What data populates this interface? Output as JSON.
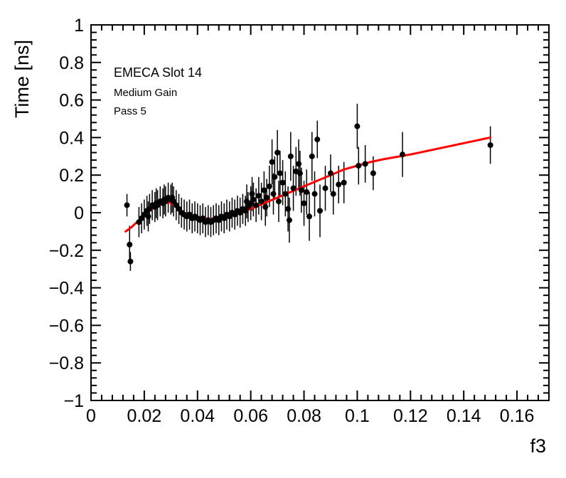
{
  "annotations": {
    "line1": "EMECA Slot 14",
    "line2": "Medium Gain",
    "line3": "Pass 5"
  },
  "chart_data": {
    "type": "scatter",
    "title": "",
    "xlabel": "f3",
    "ylabel": "Time [ns]",
    "xlim": [
      0,
      0.172
    ],
    "ylim": [
      -1,
      1
    ],
    "grid": false,
    "legend": "none",
    "marker_color": "#000000",
    "fit_color": "#ff0000",
    "x_major_ticks": [
      {
        "v": 0,
        "label": "0"
      },
      {
        "v": 0.02,
        "label": "0.02"
      },
      {
        "v": 0.04,
        "label": "0.04"
      },
      {
        "v": 0.06,
        "label": "0.06"
      },
      {
        "v": 0.08,
        "label": "0.08"
      },
      {
        "v": 0.1,
        "label": "0.1"
      },
      {
        "v": 0.12,
        "label": "0.12"
      },
      {
        "v": 0.14,
        "label": "0.14"
      },
      {
        "v": 0.16,
        "label": "0.16"
      }
    ],
    "y_major_ticks": [
      {
        "v": 1,
        "label": "1"
      },
      {
        "v": 0.8,
        "label": "0.8"
      },
      {
        "v": 0.6,
        "label": "0.6"
      },
      {
        "v": 0.4,
        "label": "0.4"
      },
      {
        "v": 0.2,
        "label": "0.2"
      },
      {
        "v": 0,
        "label": "0"
      },
      {
        "v": -0.2,
        "label": "−0.2"
      },
      {
        "v": -0.4,
        "label": "−0.4"
      },
      {
        "v": -0.6,
        "label": "−0.6"
      },
      {
        "v": -0.8,
        "label": "−0.8"
      },
      {
        "v": -1,
        "label": "−1"
      }
    ],
    "x_minor_step": 0.004,
    "y_minor_step": 0.04,
    "series": [
      {
        "name": "data",
        "type": "scatter_errorbar",
        "points": [
          [
            0.0135,
            0.04,
            0.06
          ],
          [
            0.0145,
            -0.17,
            0.1
          ],
          [
            0.0148,
            -0.26,
            0.05
          ],
          [
            0.018,
            -0.05,
            0.08
          ],
          [
            0.019,
            -0.03,
            0.08
          ],
          [
            0.02,
            -0.01,
            0.08
          ],
          [
            0.021,
            0.01,
            0.08
          ],
          [
            0.0215,
            -0.02,
            0.08
          ],
          [
            0.022,
            0.02,
            0.08
          ],
          [
            0.023,
            0.04,
            0.08
          ],
          [
            0.024,
            0.03,
            0.08
          ],
          [
            0.0245,
            0.05,
            0.08
          ],
          [
            0.025,
            0.04,
            0.08
          ],
          [
            0.026,
            0.06,
            0.08
          ],
          [
            0.027,
            0.05,
            0.08
          ],
          [
            0.0275,
            0.07,
            0.08
          ],
          [
            0.028,
            0.06,
            0.08
          ],
          [
            0.029,
            0.08,
            0.08
          ],
          [
            0.03,
            0.07,
            0.08
          ],
          [
            0.0305,
            0.08,
            0.08
          ],
          [
            0.031,
            0.06,
            0.08
          ],
          [
            0.032,
            0.04,
            0.08
          ],
          [
            0.033,
            0.02,
            0.08
          ],
          [
            0.034,
            0.0,
            0.08
          ],
          [
            0.035,
            -0.01,
            0.08
          ],
          [
            0.036,
            -0.02,
            0.08
          ],
          [
            0.037,
            -0.01,
            0.08
          ],
          [
            0.038,
            -0.03,
            0.08
          ],
          [
            0.039,
            -0.02,
            0.08
          ],
          [
            0.04,
            -0.03,
            0.08
          ],
          [
            0.041,
            -0.04,
            0.08
          ],
          [
            0.042,
            -0.03,
            0.08
          ],
          [
            0.043,
            -0.05,
            0.08
          ],
          [
            0.044,
            -0.04,
            0.08
          ],
          [
            0.045,
            -0.05,
            0.08
          ],
          [
            0.046,
            -0.04,
            0.08
          ],
          [
            0.047,
            -0.03,
            0.08
          ],
          [
            0.048,
            -0.04,
            0.08
          ],
          [
            0.049,
            -0.02,
            0.08
          ],
          [
            0.05,
            -0.03,
            0.08
          ],
          [
            0.051,
            -0.01,
            0.08
          ],
          [
            0.052,
            -0.02,
            0.08
          ],
          [
            0.053,
            0.0,
            0.08
          ],
          [
            0.054,
            -0.01,
            0.08
          ],
          [
            0.055,
            0.01,
            0.08
          ],
          [
            0.056,
            0.0,
            0.08
          ],
          [
            0.057,
            0.02,
            0.08
          ],
          [
            0.058,
            0.01,
            0.08
          ],
          [
            0.0585,
            0.06,
            0.09
          ],
          [
            0.059,
            0.03,
            0.08
          ],
          [
            0.06,
            0.05,
            0.09
          ],
          [
            0.0605,
            0.1,
            0.09
          ],
          [
            0.061,
            0.07,
            0.09
          ],
          [
            0.062,
            0.04,
            0.09
          ],
          [
            0.063,
            0.09,
            0.1
          ],
          [
            0.064,
            0.06,
            0.1
          ],
          [
            0.065,
            0.12,
            0.1
          ],
          [
            0.0655,
            0.03,
            0.1
          ],
          [
            0.066,
            0.08,
            0.1
          ],
          [
            0.067,
            0.14,
            0.11
          ],
          [
            0.068,
            0.27,
            0.12
          ],
          [
            0.0685,
            0.1,
            0.11
          ],
          [
            0.069,
            0.19,
            0.11
          ],
          [
            0.07,
            0.32,
            0.12
          ],
          [
            0.0705,
            0.06,
            0.11
          ],
          [
            0.071,
            0.21,
            0.12
          ],
          [
            0.072,
            0.16,
            0.12
          ],
          [
            0.073,
            0.1,
            0.12
          ],
          [
            0.074,
            0.02,
            0.12
          ],
          [
            0.0745,
            -0.04,
            0.12
          ],
          [
            0.075,
            0.3,
            0.13
          ],
          [
            0.076,
            0.13,
            0.12
          ],
          [
            0.077,
            0.22,
            0.13
          ],
          [
            0.078,
            0.26,
            0.13
          ],
          [
            0.0785,
            0.21,
            0.12
          ],
          [
            0.079,
            0.12,
            0.12
          ],
          [
            0.08,
            0.05,
            0.12
          ],
          [
            0.081,
            0.11,
            0.12
          ],
          [
            0.082,
            -0.02,
            0.13
          ],
          [
            0.083,
            0.3,
            0.13
          ],
          [
            0.084,
            0.1,
            0.12
          ],
          [
            0.085,
            0.39,
            0.1
          ],
          [
            0.086,
            0.01,
            0.14
          ],
          [
            0.088,
            0.13,
            0.12
          ],
          [
            0.09,
            0.21,
            0.1
          ],
          [
            0.091,
            0.1,
            0.11
          ],
          [
            0.093,
            0.15,
            0.1
          ],
          [
            0.095,
            0.16,
            0.11
          ],
          [
            0.1,
            0.46,
            0.12
          ],
          [
            0.1005,
            0.25,
            0.1
          ],
          [
            0.103,
            0.26,
            0.1
          ],
          [
            0.106,
            0.21,
            0.09
          ],
          [
            0.117,
            0.31,
            0.12
          ],
          [
            0.15,
            0.36,
            0.1
          ]
        ]
      },
      {
        "name": "fit",
        "type": "line",
        "points": [
          [
            0.013,
            -0.1
          ],
          [
            0.015,
            -0.08
          ],
          [
            0.018,
            -0.04
          ],
          [
            0.021,
            0.0
          ],
          [
            0.024,
            0.03
          ],
          [
            0.027,
            0.05
          ],
          [
            0.03,
            0.055
          ],
          [
            0.032,
            0.03
          ],
          [
            0.035,
            0.0
          ],
          [
            0.038,
            -0.02
          ],
          [
            0.042,
            -0.03
          ],
          [
            0.047,
            -0.035
          ],
          [
            0.052,
            -0.02
          ],
          [
            0.056,
            0.0
          ],
          [
            0.06,
            0.02
          ],
          [
            0.065,
            0.05
          ],
          [
            0.07,
            0.08
          ],
          [
            0.075,
            0.11
          ],
          [
            0.08,
            0.14
          ],
          [
            0.085,
            0.17
          ],
          [
            0.09,
            0.2
          ],
          [
            0.095,
            0.23
          ],
          [
            0.1,
            0.25
          ],
          [
            0.105,
            0.27
          ],
          [
            0.11,
            0.285
          ],
          [
            0.12,
            0.31
          ],
          [
            0.13,
            0.34
          ],
          [
            0.14,
            0.37
          ],
          [
            0.15,
            0.4
          ]
        ]
      }
    ]
  }
}
